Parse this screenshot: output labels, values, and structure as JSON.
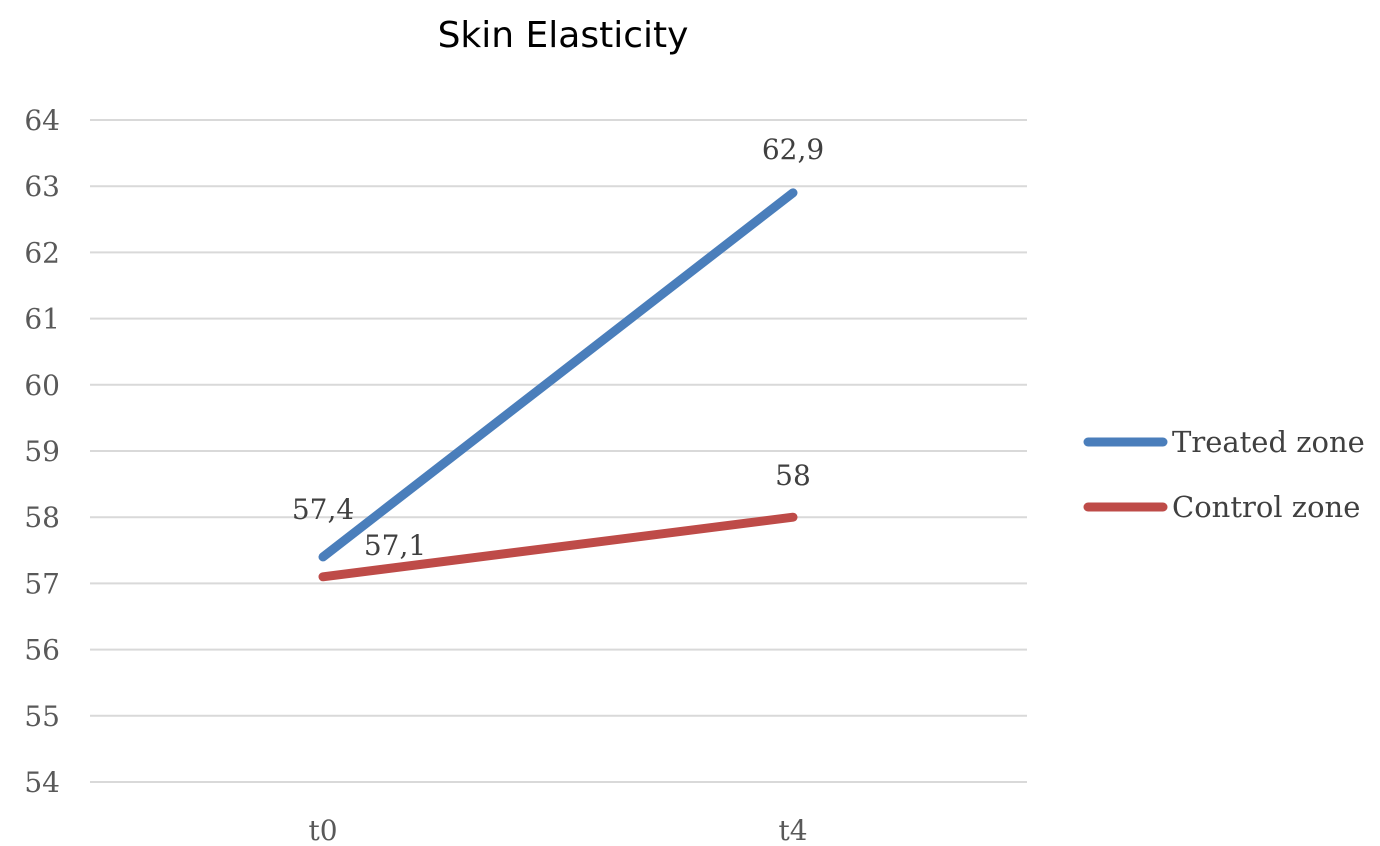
{
  "chart_data": {
    "type": "line",
    "title": "Skin Elasticity",
    "xlabel": "",
    "ylabel": "",
    "categories": [
      "t0",
      "t4"
    ],
    "ylim": [
      54,
      64
    ],
    "yticks": [
      54,
      55,
      56,
      57,
      58,
      59,
      60,
      61,
      62,
      63,
      64
    ],
    "grid": true,
    "legend_position": "right",
    "series": [
      {
        "name": "Treated zone",
        "values": [
          57.4,
          62.9
        ],
        "labels": [
          "57,4",
          "62,9"
        ],
        "color": "#4a7ebb"
      },
      {
        "name": "Control zone",
        "values": [
          57.1,
          58
        ],
        "labels": [
          "57,1",
          "58"
        ],
        "color": "#be4b48"
      }
    ]
  }
}
